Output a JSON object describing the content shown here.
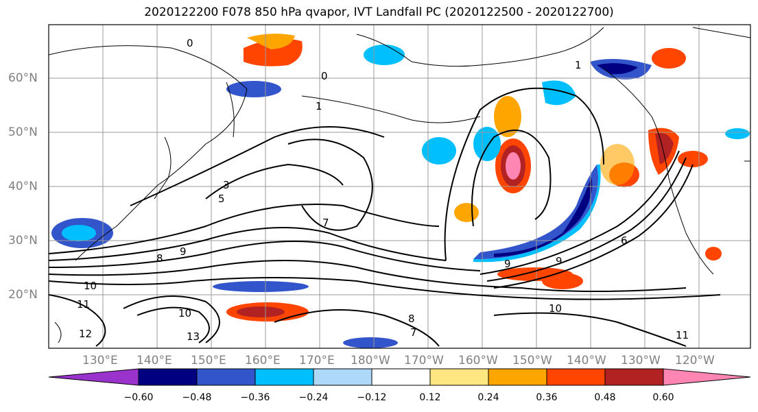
{
  "title": "2020122200 F078 850 hPa qvapor, IVT Landfall PC (2020122500 - 2020122700)",
  "lat_labels": [
    "60°N",
    "50°N",
    "40°N",
    "30°N",
    "20°N"
  ],
  "lon_labels": [
    "130°E",
    "140°E",
    "150°E",
    "160°E",
    "170°E",
    "180°W",
    "170°W",
    "160°W",
    "150°W",
    "140°W",
    "130°W",
    "120°W"
  ],
  "colorbar": {
    "ticks": [
      "−0.60",
      "−0.48",
      "−0.36",
      "−0.24",
      "−0.12",
      "0.12",
      "0.24",
      "0.36",
      "0.48",
      "0.60"
    ],
    "colors": [
      "#9933cc",
      "#000080",
      "#3355cc",
      "#00bfff",
      "#add8f8",
      "#ffffff",
      "#ffe680",
      "#ffa500",
      "#ff4500",
      "#b22222",
      "#ff85b3"
    ]
  },
  "contour_labels": [
    "0",
    "0",
    "1",
    "1",
    "3",
    "5",
    "7",
    "8",
    "9",
    "9",
    "10",
    "10",
    "11",
    "12",
    "13",
    "6",
    "7",
    "8",
    "9",
    "10",
    "11"
  ]
}
